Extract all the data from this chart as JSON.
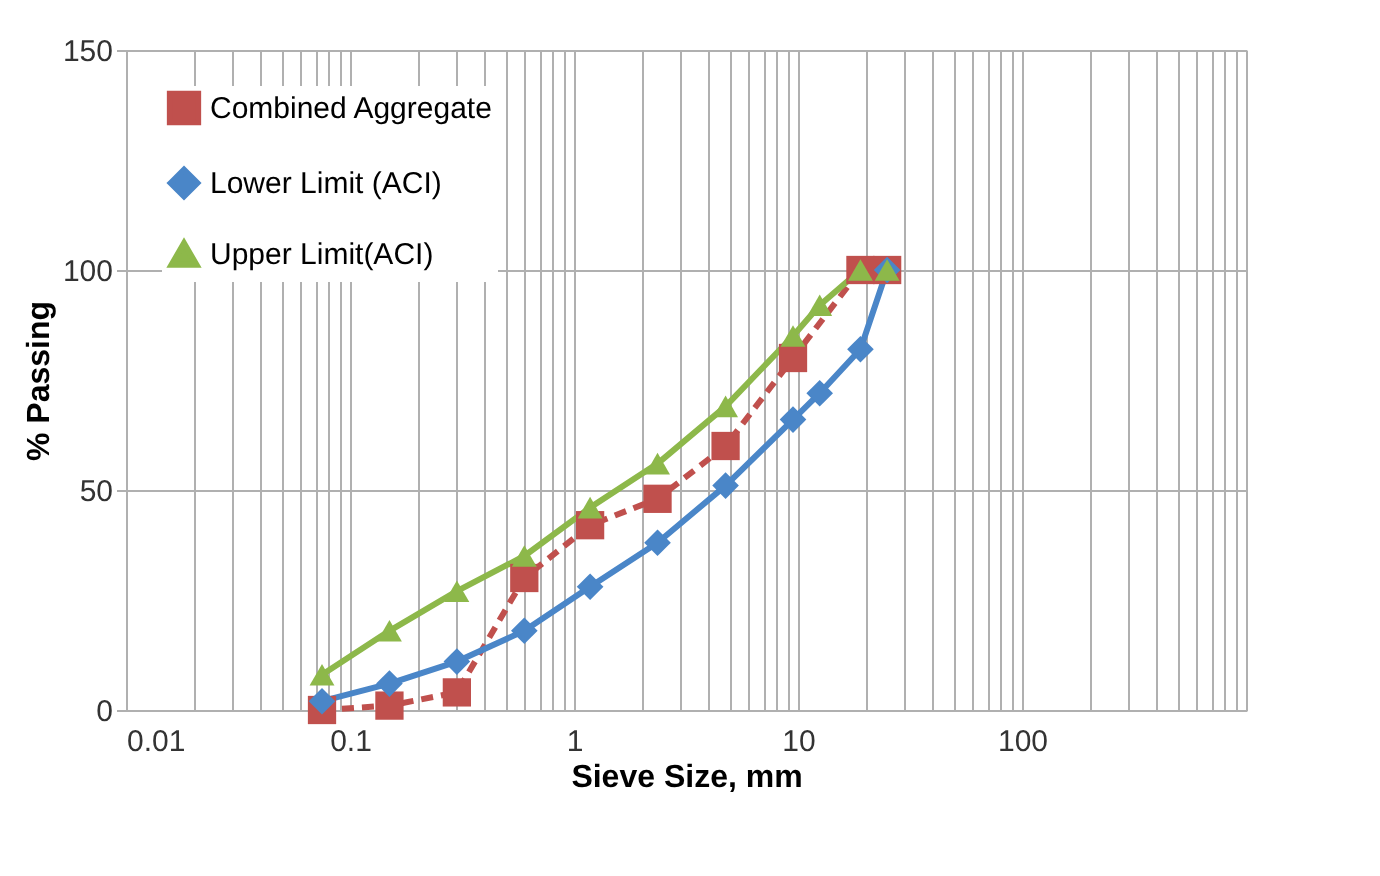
{
  "chart_data": {
    "type": "line",
    "xlabel": "Sieve Size, mm",
    "ylabel": "% Passing",
    "log": "x",
    "xlim": [
      0.01,
      1000
    ],
    "ylim": [
      0,
      150
    ],
    "xticks": [
      0.01,
      {
        "value": 0.02,
        "label": null
      },
      {
        "value": 0.03,
        "label": null
      },
      {
        "value": 0.04,
        "label": null
      },
      {
        "value": 0.05,
        "label": null
      },
      {
        "value": 0.06,
        "label": null
      },
      {
        "value": 0.07,
        "label": null
      },
      {
        "value": 0.08,
        "label": null
      },
      {
        "value": 0.09,
        "label": null
      },
      0.1,
      {
        "value": 0.2,
        "label": null
      },
      {
        "value": 0.3,
        "label": null
      },
      {
        "value": 0.4,
        "label": null
      },
      {
        "value": 0.5,
        "label": null
      },
      {
        "value": 0.6,
        "label": null
      },
      {
        "value": 0.7,
        "label": null
      },
      {
        "value": 0.8,
        "label": null
      },
      {
        "value": 0.9,
        "label": null
      },
      1,
      {
        "value": 2,
        "label": null
      },
      {
        "value": 3,
        "label": null
      },
      {
        "value": 4,
        "label": null
      },
      {
        "value": 5,
        "label": null
      },
      {
        "value": 6,
        "label": null
      },
      {
        "value": 7,
        "label": null
      },
      {
        "value": 8,
        "label": null
      },
      {
        "value": 9,
        "label": null
      },
      10,
      {
        "value": 20,
        "label": null
      },
      {
        "value": 30,
        "label": null
      },
      {
        "value": 40,
        "label": null
      },
      {
        "value": 50,
        "label": null
      },
      {
        "value": 60,
        "label": null
      },
      {
        "value": 70,
        "label": null
      },
      {
        "value": 80,
        "label": null
      },
      {
        "value": 90,
        "label": null
      },
      100,
      {
        "value": 200,
        "label": null
      },
      {
        "value": 300,
        "label": null
      },
      {
        "value": 400,
        "label": null
      },
      {
        "value": 500,
        "label": null
      },
      {
        "value": 600,
        "label": null
      },
      {
        "value": 700,
        "label": null
      },
      {
        "value": 800,
        "label": null
      },
      {
        "value": 900,
        "label": null
      },
      {
        "value": 1000,
        "label": null
      }
    ],
    "yticks": [
      0,
      50,
      100,
      150
    ],
    "grid": true,
    "legend": "top left",
    "series": [
      {
        "name": "Combined Aggregate",
        "color": "#c0504d",
        "marker": "square",
        "line_style": "dashed",
        "x": [
          0.075,
          0.15,
          0.3,
          0.6,
          1.18,
          2.36,
          4.75,
          9.5,
          19,
          25
        ],
        "values": [
          0,
          1,
          4,
          30,
          42,
          48,
          60,
          80,
          100,
          100
        ]
      },
      {
        "name": "Lower Limit (ACI)",
        "color": "#4a86c8",
        "marker": "diamond",
        "line_style": "solid",
        "x": [
          0.075,
          0.15,
          0.3,
          0.6,
          1.18,
          2.36,
          4.75,
          9.5,
          12.5,
          19,
          25
        ],
        "values": [
          2,
          6,
          11,
          18,
          28,
          38,
          51,
          66,
          72,
          82,
          100
        ]
      },
      {
        "name": "Upper Limit(ACI)",
        "color": "#8db84a",
        "marker": "triangle",
        "line_style": "solid",
        "x": [
          0.075,
          0.15,
          0.3,
          0.6,
          1.18,
          2.36,
          4.75,
          9.5,
          12.5,
          19,
          25
        ],
        "values": [
          8,
          18,
          27,
          35,
          46,
          56,
          69,
          85,
          92,
          100,
          100
        ]
      }
    ]
  }
}
